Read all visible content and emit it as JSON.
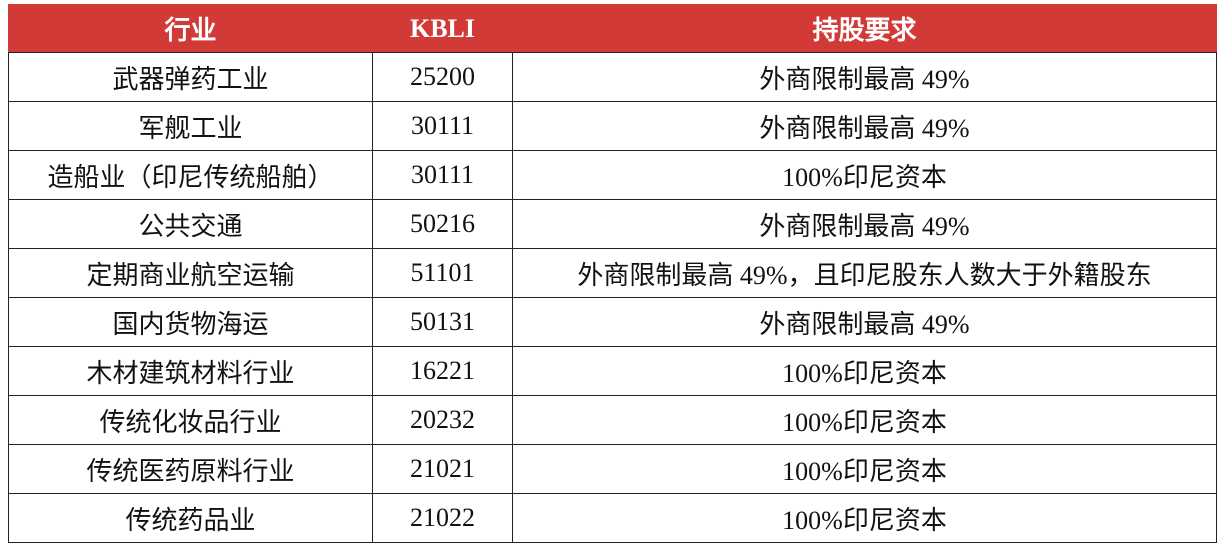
{
  "table": {
    "columns": [
      "行业",
      "KBLI",
      "持股要求"
    ],
    "rows": [
      [
        "武器弹药工业",
        "25200",
        "外商限制最高 49%"
      ],
      [
        "军舰工业",
        "30111",
        "外商限制最高 49%"
      ],
      [
        "造船业（印尼传统船舶）",
        "30111",
        "100%印尼资本"
      ],
      [
        "公共交通",
        "50216",
        "外商限制最高 49%"
      ],
      [
        "定期商业航空运输",
        "51101",
        "外商限制最高 49%，且印尼股东人数大于外籍股东"
      ],
      [
        "国内货物海运",
        "50131",
        "外商限制最高 49%"
      ],
      [
        "木材建筑材料行业",
        "16221",
        "100%印尼资本"
      ],
      [
        "传统化妆品行业",
        "20232",
        "100%印尼资本"
      ],
      [
        "传统医药原料行业",
        "21021",
        "100%印尼资本"
      ],
      [
        "传统药品业",
        "21022",
        "100%印尼资本"
      ]
    ]
  }
}
